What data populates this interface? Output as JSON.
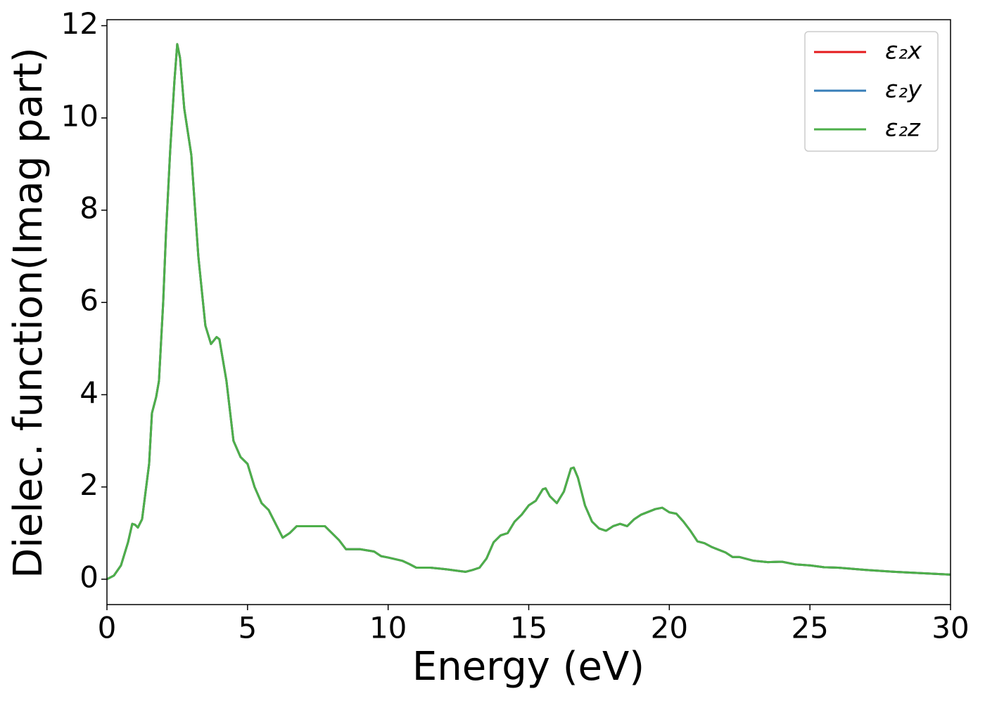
{
  "chart_data": {
    "type": "line",
    "x_label": "Energy (eV)",
    "y_label": "Dielec. function(Imag part)",
    "x": [
      0,
      0.25,
      0.5,
      0.75,
      0.9,
      1.0,
      1.1,
      1.25,
      1.5,
      1.6,
      1.75,
      1.85,
      2.0,
      2.1,
      2.25,
      2.4,
      2.5,
      2.6,
      2.75,
      3.0,
      3.25,
      3.5,
      3.7,
      3.9,
      4.0,
      4.25,
      4.5,
      4.75,
      5.0,
      5.25,
      5.5,
      5.75,
      6.0,
      6.25,
      6.5,
      6.75,
      7.0,
      7.5,
      7.75,
      8.0,
      8.25,
      8.5,
      8.75,
      9.0,
      9.5,
      9.75,
      10.0,
      10.5,
      10.75,
      11.0,
      11.5,
      12.0,
      12.5,
      12.75,
      13.0,
      13.25,
      13.5,
      13.75,
      14.0,
      14.25,
      14.5,
      14.75,
      15.0,
      15.25,
      15.5,
      15.6,
      15.75,
      16.0,
      16.25,
      16.5,
      16.6,
      16.75,
      17.0,
      17.25,
      17.5,
      17.75,
      18.0,
      18.25,
      18.5,
      18.75,
      19.0,
      19.5,
      19.75,
      20.0,
      20.25,
      20.5,
      20.75,
      21.0,
      21.25,
      21.5,
      22.0,
      22.25,
      22.5,
      23.0,
      23.5,
      24.0,
      24.5,
      25.0,
      25.5,
      26.0,
      27.0,
      28.0,
      29.0,
      30.0
    ],
    "series": [
      {
        "name": "ε₂x",
        "color": "#e41a1c",
        "values": [
          0,
          0.08,
          0.3,
          0.8,
          1.2,
          1.18,
          1.12,
          1.3,
          2.5,
          3.6,
          3.95,
          4.3,
          6.0,
          7.5,
          9.3,
          10.8,
          11.6,
          11.3,
          10.2,
          9.2,
          7.0,
          5.5,
          5.1,
          5.25,
          5.2,
          4.3,
          3.0,
          2.65,
          2.5,
          2.0,
          1.65,
          1.5,
          1.2,
          0.9,
          1.0,
          1.15,
          1.15,
          1.15,
          1.15,
          1.0,
          0.85,
          0.65,
          0.65,
          0.65,
          0.6,
          0.5,
          0.47,
          0.4,
          0.33,
          0.25,
          0.25,
          0.22,
          0.18,
          0.16,
          0.2,
          0.25,
          0.45,
          0.8,
          0.95,
          1.0,
          1.25,
          1.4,
          1.6,
          1.7,
          1.95,
          1.97,
          1.8,
          1.65,
          1.9,
          2.4,
          2.42,
          2.2,
          1.6,
          1.25,
          1.1,
          1.05,
          1.15,
          1.2,
          1.15,
          1.3,
          1.4,
          1.52,
          1.55,
          1.45,
          1.42,
          1.25,
          1.05,
          0.82,
          0.78,
          0.7,
          0.58,
          0.48,
          0.48,
          0.4,
          0.37,
          0.38,
          0.32,
          0.3,
          0.26,
          0.25,
          0.2,
          0.16,
          0.13,
          0.1
        ]
      },
      {
        "name": "ε₂y",
        "color": "#377eb8",
        "values": [
          0,
          0.08,
          0.3,
          0.8,
          1.2,
          1.18,
          1.12,
          1.3,
          2.5,
          3.6,
          3.95,
          4.3,
          6.0,
          7.5,
          9.3,
          10.8,
          11.6,
          11.3,
          10.2,
          9.2,
          7.0,
          5.5,
          5.1,
          5.25,
          5.2,
          4.3,
          3.0,
          2.65,
          2.5,
          2.0,
          1.65,
          1.5,
          1.2,
          0.9,
          1.0,
          1.15,
          1.15,
          1.15,
          1.15,
          1.0,
          0.85,
          0.65,
          0.65,
          0.65,
          0.6,
          0.5,
          0.47,
          0.4,
          0.33,
          0.25,
          0.25,
          0.22,
          0.18,
          0.16,
          0.2,
          0.25,
          0.45,
          0.8,
          0.95,
          1.0,
          1.25,
          1.4,
          1.6,
          1.7,
          1.95,
          1.97,
          1.8,
          1.65,
          1.9,
          2.4,
          2.42,
          2.2,
          1.6,
          1.25,
          1.1,
          1.05,
          1.15,
          1.2,
          1.15,
          1.3,
          1.4,
          1.52,
          1.55,
          1.45,
          1.42,
          1.25,
          1.05,
          0.82,
          0.78,
          0.7,
          0.58,
          0.48,
          0.48,
          0.4,
          0.37,
          0.38,
          0.32,
          0.3,
          0.26,
          0.25,
          0.2,
          0.16,
          0.13,
          0.1
        ]
      },
      {
        "name": "ε₂z",
        "color": "#4daf4a",
        "values": [
          0,
          0.08,
          0.3,
          0.8,
          1.2,
          1.18,
          1.12,
          1.3,
          2.5,
          3.6,
          3.95,
          4.3,
          6.0,
          7.5,
          9.3,
          10.8,
          11.6,
          11.3,
          10.2,
          9.2,
          7.0,
          5.5,
          5.1,
          5.25,
          5.2,
          4.3,
          3.0,
          2.65,
          2.5,
          2.0,
          1.65,
          1.5,
          1.2,
          0.9,
          1.0,
          1.15,
          1.15,
          1.15,
          1.15,
          1.0,
          0.85,
          0.65,
          0.65,
          0.65,
          0.6,
          0.5,
          0.47,
          0.4,
          0.33,
          0.25,
          0.25,
          0.22,
          0.18,
          0.16,
          0.2,
          0.25,
          0.45,
          0.8,
          0.95,
          1.0,
          1.25,
          1.4,
          1.6,
          1.7,
          1.95,
          1.97,
          1.8,
          1.65,
          1.9,
          2.4,
          2.42,
          2.2,
          1.6,
          1.25,
          1.1,
          1.05,
          1.15,
          1.2,
          1.15,
          1.3,
          1.4,
          1.52,
          1.55,
          1.45,
          1.42,
          1.25,
          1.05,
          0.82,
          0.78,
          0.7,
          0.58,
          0.48,
          0.48,
          0.4,
          0.37,
          0.38,
          0.32,
          0.3,
          0.26,
          0.25,
          0.2,
          0.16,
          0.13,
          0.1
        ]
      }
    ],
    "xlim": [
      0,
      30
    ],
    "xticks": [
      0,
      5,
      10,
      15,
      20,
      25,
      30
    ],
    "ylim": [
      -0.55,
      12.13
    ],
    "yticks": [
      0,
      2,
      4,
      6,
      8,
      10,
      12
    ],
    "legend": "upper right"
  }
}
